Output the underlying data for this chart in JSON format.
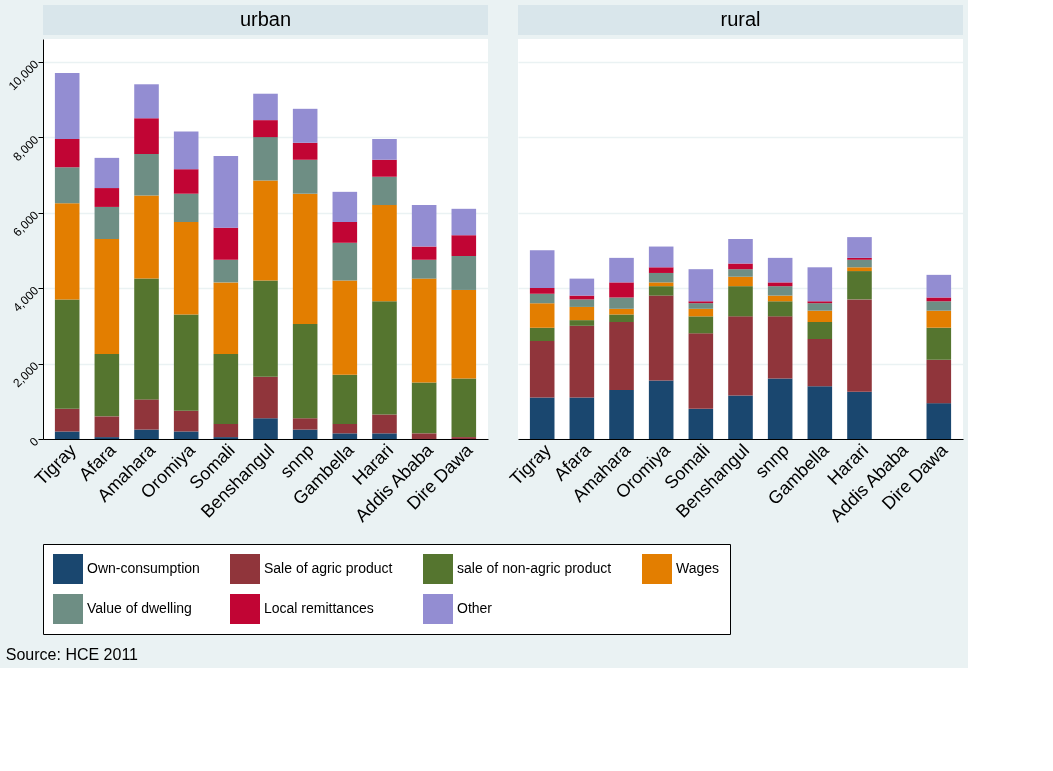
{
  "chart_data": [
    {
      "type": "bar",
      "stacked": true,
      "title": "urban",
      "categories": [
        "Tigray",
        "Afara",
        "Amahara",
        "Oromiya",
        "Somali",
        "Benshangul",
        "snnp",
        "Gambella",
        "Harari",
        "Addis Ababa",
        "Dire Dawa"
      ],
      "series": [
        {
          "name": "Own-consumption",
          "color": "#1a476f",
          "values": [
            200,
            50,
            250,
            200,
            50,
            550,
            250,
            150,
            150,
            0,
            0
          ]
        },
        {
          "name": "Sale of agric product",
          "color": "#90353b",
          "values": [
            600,
            550,
            800,
            550,
            350,
            1100,
            300,
            250,
            500,
            150,
            50
          ]
        },
        {
          "name": "sale of non-agric product",
          "color": "#55752f",
          "values": [
            2900,
            1650,
            3200,
            2550,
            1850,
            2550,
            2500,
            1300,
            3000,
            1350,
            1550
          ]
        },
        {
          "name": "Wages",
          "color": "#e37e00",
          "values": [
            2550,
            3050,
            2200,
            2450,
            1900,
            2650,
            3450,
            2500,
            2550,
            2750,
            2350
          ]
        },
        {
          "name": "Value of dwelling",
          "color": "#6e8e84",
          "values": [
            950,
            850,
            1100,
            750,
            600,
            1150,
            900,
            1000,
            750,
            500,
            900
          ]
        },
        {
          "name": "Local remittances",
          "color": "#c10534",
          "values": [
            750,
            500,
            950,
            650,
            850,
            450,
            450,
            550,
            450,
            350,
            550
          ]
        },
        {
          "name": "Other",
          "color": "#938dd2",
          "values": [
            1750,
            800,
            900,
            1000,
            1900,
            700,
            900,
            800,
            550,
            1100,
            700
          ]
        }
      ],
      "ylim": [
        0,
        10600
      ],
      "yticks": [
        {
          "value": 0,
          "label": "0"
        },
        {
          "value": 2000,
          "label": "2,000"
        },
        {
          "value": 4000,
          "label": "4,000"
        },
        {
          "value": 6000,
          "label": "6,000"
        },
        {
          "value": 8000,
          "label": "8,000"
        },
        {
          "value": 10000,
          "label": "10,000"
        }
      ],
      "grid": "y",
      "legend": "bottom",
      "annotations": [
        "Source: HCE 2011"
      ]
    },
    {
      "type": "bar",
      "stacked": true,
      "title": "rural",
      "categories": [
        "Tigray",
        "Afara",
        "Amahara",
        "Oromiya",
        "Somali",
        "Benshangul",
        "snnp",
        "Gambella",
        "Harari",
        "Addis Ababa",
        "Dire Dawa"
      ],
      "series": [
        {
          "name": "Own-consumption",
          "color": "#1a476f",
          "values": [
            1100,
            1100,
            1300,
            1550,
            800,
            1150,
            1600,
            1400,
            1250,
            null,
            950
          ]
        },
        {
          "name": "Sale of agric product",
          "color": "#90353b",
          "values": [
            1500,
            1900,
            1800,
            2250,
            2000,
            2100,
            1650,
            1250,
            2450,
            null,
            1150
          ]
        },
        {
          "name": "sale of non-agric product",
          "color": "#55752f",
          "values": [
            350,
            150,
            200,
            250,
            450,
            800,
            400,
            450,
            750,
            null,
            850
          ]
        },
        {
          "name": "Wages",
          "color": "#e37e00",
          "values": [
            650,
            350,
            150,
            100,
            200,
            250,
            150,
            300,
            100,
            null,
            450
          ]
        },
        {
          "name": "Value of dwelling",
          "color": "#6e8e84",
          "values": [
            250,
            200,
            300,
            250,
            150,
            200,
            250,
            200,
            200,
            null,
            250
          ]
        },
        {
          "name": "Local remittances",
          "color": "#c10534",
          "values": [
            150,
            100,
            400,
            150,
            50,
            150,
            100,
            50,
            50,
            null,
            100
          ]
        },
        {
          "name": "Other",
          "color": "#938dd2",
          "values": [
            1000,
            450,
            650,
            550,
            850,
            650,
            650,
            900,
            550,
            null,
            600
          ]
        }
      ],
      "ylim": [
        0,
        10600
      ],
      "yticks": [
        0,
        2000,
        4000,
        6000,
        8000,
        10000
      ],
      "grid": "y",
      "legend": "bottom",
      "tick_labels": "x"
    }
  ]
}
